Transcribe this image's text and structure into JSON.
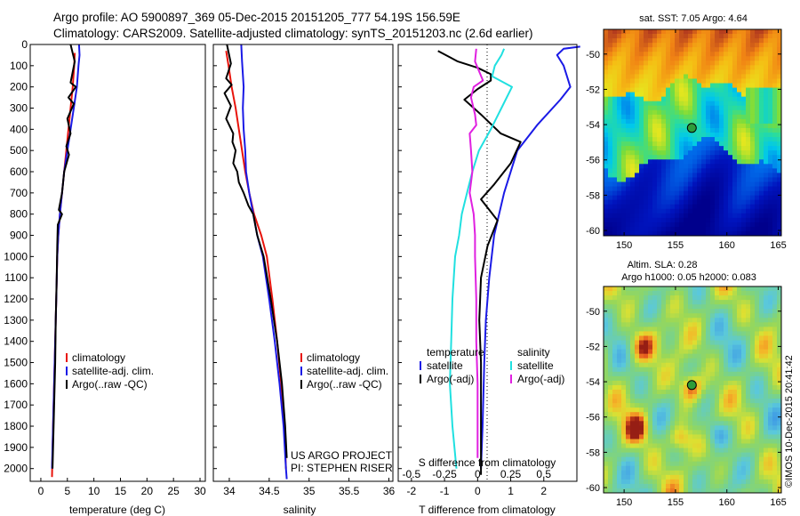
{
  "header": {
    "line1": "Argo profile: AO 5900897_369 05-Dec-2015 20151205_777 54.19S 156.59E",
    "line2": "Climatology: CARS2009. Satellite-adjusted climatology: synTS_20151203.nc (2.6d earlier)"
  },
  "colors": {
    "climatology": "#e8140c",
    "satellite": "#1a1ae6",
    "argo": "#000000",
    "argo_salinity_diff": "#e020e0",
    "satellite_salinity_diff": "#20e0e0"
  },
  "depth_axis": {
    "ticks": [
      "0",
      "100",
      "200",
      "300",
      "400",
      "500",
      "600",
      "700",
      "800",
      "900",
      "1000",
      "1100",
      "1200",
      "1300",
      "1400",
      "1500",
      "1600",
      "1700",
      "1800",
      "1900",
      "2000"
    ],
    "range": [
      0,
      2060
    ]
  },
  "chart_data": [
    {
      "type": "line",
      "xlabel": "temperature (deg C)",
      "xticks": [
        "0",
        "5",
        "10",
        "15",
        "20",
        "25",
        "30"
      ],
      "xlim": [
        -2,
        31
      ],
      "ylim": [
        0,
        2060
      ],
      "legend": [
        "climatology",
        "satellite-adj. clim.",
        "Argo(..raw -QC)"
      ],
      "series": [
        {
          "name": "climatology",
          "color": "#e8140c",
          "points": [
            [
              6.4,
              40
            ],
            [
              6.3,
              100
            ],
            [
              6.0,
              200
            ],
            [
              5.6,
              300
            ],
            [
              5.2,
              400
            ],
            [
              4.8,
              500
            ],
            [
              4.4,
              600
            ],
            [
              4.0,
              700
            ],
            [
              3.6,
              800
            ],
            [
              3.3,
              900
            ],
            [
              3.1,
              1000
            ],
            [
              2.9,
              1200
            ],
            [
              2.7,
              1400
            ],
            [
              2.5,
              1600
            ],
            [
              2.3,
              1800
            ],
            [
              2.1,
              2040
            ]
          ]
        },
        {
          "name": "satellite-adj. clim.",
          "color": "#1a1ae6",
          "points": [
            [
              7.2,
              0
            ],
            [
              7.3,
              50
            ],
            [
              7.1,
              100
            ],
            [
              6.8,
              200
            ],
            [
              6.2,
              300
            ],
            [
              5.6,
              400
            ],
            [
              5.0,
              500
            ],
            [
              4.4,
              600
            ],
            [
              4.0,
              700
            ],
            [
              3.6,
              800
            ],
            [
              3.3,
              900
            ],
            [
              3.1,
              1000
            ],
            [
              2.9,
              1200
            ],
            [
              2.7,
              1400
            ],
            [
              2.5,
              1600
            ],
            [
              2.3,
              1800
            ],
            [
              2.1,
              2000
            ]
          ]
        },
        {
          "name": "Argo(..raw -QC)",
          "color": "#000000",
          "points": [
            [
              5.6,
              0
            ],
            [
              6.4,
              80
            ],
            [
              5.6,
              180
            ],
            [
              6.6,
              200
            ],
            [
              5.2,
              250
            ],
            [
              6.2,
              280
            ],
            [
              5.0,
              350
            ],
            [
              5.6,
              420
            ],
            [
              4.8,
              480
            ],
            [
              5.3,
              520
            ],
            [
              4.4,
              600
            ],
            [
              4.0,
              700
            ],
            [
              3.4,
              780
            ],
            [
              4.0,
              800
            ],
            [
              3.2,
              850
            ],
            [
              3.1,
              950
            ],
            [
              3.0,
              1100
            ],
            [
              2.8,
              1300
            ],
            [
              2.7,
              1500
            ],
            [
              2.5,
              1700
            ],
            [
              2.3,
              1900
            ],
            [
              2.2,
              2000
            ]
          ]
        }
      ]
    },
    {
      "type": "line",
      "xlabel": "salinity",
      "xticks": [
        "34",
        "34.5",
        "35",
        "35.5",
        "36"
      ],
      "xlim": [
        33.8,
        36.05
      ],
      "ylim": [
        0,
        2060
      ],
      "legend": [
        "climatology",
        "satellite-adj. clim.",
        "Argo(..raw -QC)"
      ],
      "annotation": [
        "US ARGO PROJECT",
        "PI: STEPHEN RISER"
      ],
      "series": [
        {
          "name": "climatology",
          "color": "#e8140c",
          "points": [
            [
              33.96,
              30
            ],
            [
              33.99,
              100
            ],
            [
              34.03,
              200
            ],
            [
              34.08,
              300
            ],
            [
              34.12,
              400
            ],
            [
              34.16,
              500
            ],
            [
              34.2,
              600
            ],
            [
              34.25,
              700
            ],
            [
              34.31,
              800
            ],
            [
              34.4,
              900
            ],
            [
              34.47,
              1000
            ],
            [
              34.54,
              1200
            ],
            [
              34.6,
              1400
            ],
            [
              34.65,
              1600
            ],
            [
              34.69,
              1800
            ],
            [
              34.71,
              2000
            ]
          ]
        },
        {
          "name": "satellite-adj. clim.",
          "color": "#1a1ae6",
          "points": [
            [
              34.15,
              0
            ],
            [
              34.16,
              80
            ],
            [
              34.18,
              200
            ],
            [
              34.17,
              300
            ],
            [
              34.18,
              400
            ],
            [
              34.2,
              500
            ],
            [
              34.21,
              600
            ],
            [
              34.25,
              700
            ],
            [
              34.3,
              800
            ],
            [
              34.35,
              900
            ],
            [
              34.42,
              1000
            ],
            [
              34.5,
              1200
            ],
            [
              34.57,
              1400
            ],
            [
              34.63,
              1600
            ],
            [
              34.68,
              1800
            ],
            [
              34.71,
              2000
            ],
            [
              34.72,
              2050
            ]
          ]
        },
        {
          "name": "Argo(..raw -QC)",
          "color": "#000000",
          "points": [
            [
              33.97,
              0
            ],
            [
              34.02,
              90
            ],
            [
              33.96,
              160
            ],
            [
              34.03,
              190
            ],
            [
              33.94,
              230
            ],
            [
              34.02,
              290
            ],
            [
              33.96,
              350
            ],
            [
              34.05,
              420
            ],
            [
              34.04,
              460
            ],
            [
              34.08,
              500
            ],
            [
              34.05,
              560
            ],
            [
              34.1,
              600
            ],
            [
              34.12,
              650
            ],
            [
              34.18,
              700
            ],
            [
              34.24,
              760
            ],
            [
              34.3,
              800
            ],
            [
              34.35,
              900
            ],
            [
              34.43,
              1000
            ],
            [
              34.52,
              1200
            ],
            [
              34.6,
              1400
            ],
            [
              34.66,
              1600
            ],
            [
              34.7,
              1800
            ],
            [
              34.72,
              1950
            ]
          ]
        }
      ]
    },
    {
      "type": "line",
      "xlabel": "T difference from climatology",
      "xticks": [
        "-2",
        "-1",
        "0",
        "1",
        "2"
      ],
      "xlim": [
        -2.4,
        3.0
      ],
      "secondary_xlabel": "S difference from climatology",
      "secondary_xticks": [
        "-0.5",
        "-0.25",
        "0",
        "0.25",
        "0.5"
      ],
      "secondary_xlim": [
        -0.6,
        0.75
      ],
      "ylim": [
        0,
        2060
      ],
      "legend_left_title": "temperature",
      "legend_right_title": "salinity",
      "legend": [
        "satellite",
        "Argo(-adj)",
        "satellite",
        "Argo(-adj)"
      ],
      "series": [
        {
          "name": "satellite",
          "group": "temperature",
          "color": "#1a1ae6",
          "points": [
            [
              3.1,
              10
            ],
            [
              2.6,
              20
            ],
            [
              2.4,
              50
            ],
            [
              2.6,
              100
            ],
            [
              2.8,
              200
            ],
            [
              2.5,
              260
            ],
            [
              1.8,
              380
            ],
            [
              1.2,
              500
            ],
            [
              0.8,
              700
            ],
            [
              0.5,
              900
            ],
            [
              0.35,
              1100
            ],
            [
              0.25,
              1300
            ],
            [
              0.2,
              1500
            ],
            [
              0.15,
              1800
            ],
            [
              0.1,
              2000
            ]
          ]
        },
        {
          "name": "Argo(-adj)",
          "group": "temperature",
          "color": "#000000",
          "points": [
            [
              -1.2,
              30
            ],
            [
              -0.6,
              80
            ],
            [
              0,
              110
            ],
            [
              0.4,
              140
            ],
            [
              0.4,
              170
            ],
            [
              0,
              210
            ],
            [
              -0.4,
              260
            ],
            [
              0.1,
              330
            ],
            [
              0.7,
              420
            ],
            [
              1.3,
              460
            ],
            [
              1.0,
              560
            ],
            [
              0.5,
              660
            ],
            [
              0.1,
              730
            ],
            [
              0.6,
              830
            ],
            [
              0.3,
              950
            ],
            [
              0.1,
              1100
            ],
            [
              0.05,
              1300
            ],
            [
              0.1,
              1500
            ],
            [
              0.1,
              1700
            ],
            [
              0.1,
              1900
            ],
            [
              0.1,
              2030
            ]
          ]
        },
        {
          "name": "satellite",
          "group": "salinity",
          "color": "#20e0e0",
          "points": [
            [
              0.2,
              20
            ],
            [
              0.18,
              50
            ],
            [
              0.13,
              100
            ],
            [
              0.11,
              150
            ],
            [
              0.26,
              200
            ],
            [
              0.18,
              300
            ],
            [
              0.1,
              400
            ],
            [
              0.01,
              500
            ],
            [
              -0.04,
              600
            ],
            [
              -0.08,
              700
            ],
            [
              -0.12,
              800
            ],
            [
              -0.14,
              900
            ],
            [
              -0.17,
              1000
            ],
            [
              -0.19,
              1200
            ],
            [
              -0.2,
              1400
            ],
            [
              -0.21,
              1600
            ],
            [
              -0.19,
              1800
            ],
            [
              -0.16,
              2000
            ]
          ]
        },
        {
          "name": "Argo(-adj)",
          "group": "salinity",
          "color": "#e020e0",
          "points": [
            [
              -0.01,
              20
            ],
            [
              -0.02,
              80
            ],
            [
              0.04,
              170
            ],
            [
              -0.03,
              200
            ],
            [
              -0.05,
              250
            ],
            [
              -0.02,
              330
            ],
            [
              -0.01,
              380
            ],
            [
              -0.06,
              420
            ],
            [
              -0.05,
              500
            ],
            [
              -0.04,
              600
            ],
            [
              -0.06,
              700
            ],
            [
              -0.03,
              800
            ],
            [
              -0.02,
              900
            ],
            [
              -0.02,
              1000
            ],
            [
              -0.01,
              1200
            ],
            [
              -0.01,
              1400
            ],
            [
              0,
              1600
            ],
            [
              0,
              1800
            ],
            [
              0,
              1950
            ]
          ]
        }
      ]
    },
    {
      "type": "heatmap",
      "title": "sat. SST: 7.05 Argo: 4.64",
      "xticks": [
        "150",
        "155",
        "160",
        "165"
      ],
      "yticks": [
        "-50",
        "-52",
        "-54",
        "-56",
        "-58",
        "-60"
      ],
      "xlim": [
        148,
        165.3
      ],
      "ylim": [
        -60.3,
        -48.6
      ],
      "marker": {
        "lon": 156.59,
        "lat": -54.19
      }
    },
    {
      "type": "heatmap",
      "title": "Altim. SLA: 0.28",
      "subtitle": "Argo h1000: 0.05 h2000: 0.083",
      "xticks": [
        "150",
        "155",
        "160",
        "165"
      ],
      "yticks": [
        "-50",
        "-52",
        "-54",
        "-56",
        "-58",
        "-60"
      ],
      "xlim": [
        148,
        165.3
      ],
      "ylim": [
        -60.3,
        -48.6
      ],
      "marker": {
        "lon": 156.59,
        "lat": -54.19
      },
      "side_label": "©IMOS 10-Dec-2015 20:41:42"
    }
  ]
}
